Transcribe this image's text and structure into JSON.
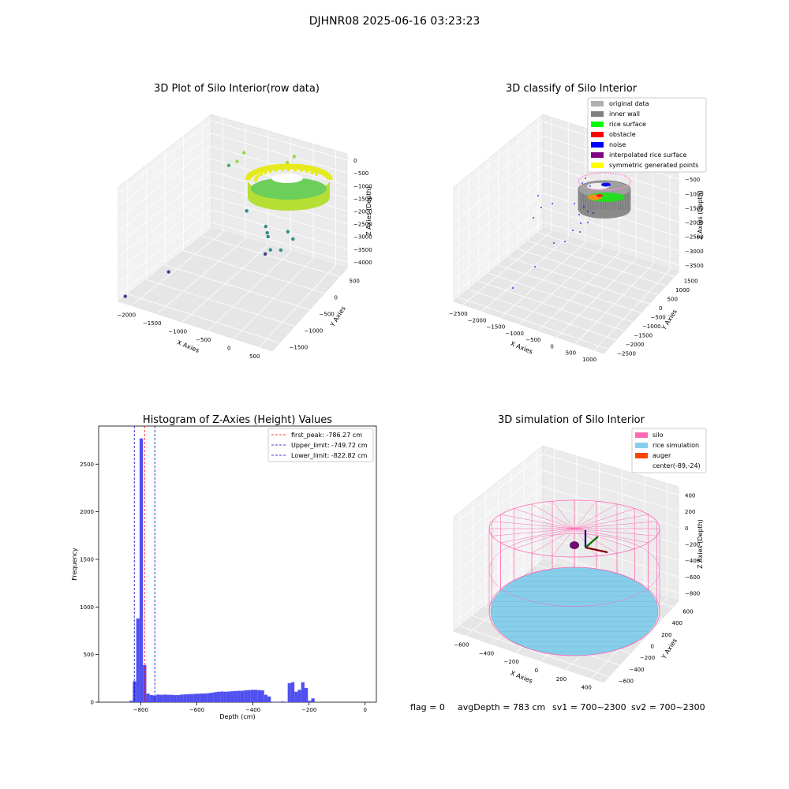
{
  "figure_title": "DJHNR08 2025-06-16 03:23:23",
  "footer": {
    "flag": "flag = 0",
    "avg_depth": "avgDepth = 783 cm",
    "sv1": "sv1 = 700~2300",
    "sv2": "sv2 = 700~2300"
  },
  "chart_data": [
    {
      "type": "scatter",
      "subtype": "3d",
      "title": "3D Plot of Silo Interior(row data)",
      "xlabel": "X Axies",
      "ylabel": "Y Axies",
      "zlabel": "Z Axies (Depth)",
      "x_ticks": [
        "-2000",
        "-1500",
        "-1000",
        "-500",
        "0",
        "500"
      ],
      "y_ticks": [
        "-1500",
        "-1000",
        "-500",
        "0",
        "500"
      ],
      "z_ticks": [
        "0",
        "-500",
        "-1000",
        "-1500",
        "-2000",
        "-2500",
        "-3000",
        "-3500",
        "-4000"
      ],
      "ring": {
        "center": [
          -89,
          -24
        ],
        "radius": 600,
        "z_top": -700,
        "z_bottom": -850
      },
      "outliers": [
        {
          "x": -2050,
          "y": -1500,
          "z": -3900
        },
        {
          "x": -1700,
          "y": -900,
          "z": -3500
        },
        {
          "x": -1600,
          "y": 500,
          "z": -1300
        },
        {
          "x": -1400,
          "y": 450,
          "z": -1000
        },
        {
          "x": -1300,
          "y": 500,
          "z": -700
        },
        {
          "x": -1100,
          "y": 300,
          "z": -2400
        },
        {
          "x": -800,
          "y": 400,
          "z": -2900
        },
        {
          "x": -700,
          "y": 300,
          "z": -2950
        },
        {
          "x": -650,
          "y": 250,
          "z": -3000
        },
        {
          "x": -500,
          "y": 100,
          "z": -3200
        },
        {
          "x": -600,
          "y": 100,
          "z": -3400
        },
        {
          "x": -300,
          "y": 300,
          "z": -2700
        },
        {
          "x": -200,
          "y": 300,
          "z": -2900
        },
        {
          "x": -300,
          "y": 100,
          "z": -3100
        },
        {
          "x": -400,
          "y": 200,
          "z": -1200
        },
        {
          "x": -250,
          "y": 400,
          "z": -1100
        },
        {
          "x": -450,
          "y": 500,
          "z": -600
        },
        {
          "x": -350,
          "y": 550,
          "z": -400
        }
      ]
    },
    {
      "type": "scatter",
      "subtype": "3d",
      "title": "3D classify of Silo Interior",
      "xlabel": "X Axies",
      "ylabel": "Y Axies",
      "zlabel": "Z Axies (Depth)",
      "x_ticks": [
        "-2500",
        "-2000",
        "-1500",
        "-1000",
        "-500",
        "0",
        "500",
        "1000"
      ],
      "y_ticks": [
        "-2500",
        "-2000",
        "-1500",
        "-1000",
        "-500",
        "0",
        "500",
        "1000",
        "1500"
      ],
      "z_ticks": [
        "0",
        "-500",
        "-1000",
        "-1500",
        "-2000",
        "-2500",
        "-3000",
        "-3500"
      ],
      "legend": [
        {
          "label": "original data",
          "color": "#b0b0b0"
        },
        {
          "label": "inner wall",
          "color": "#808080"
        },
        {
          "label": "rice surface",
          "color": "#00ff00"
        },
        {
          "label": "obstacle",
          "color": "#ff0000"
        },
        {
          "label": "noise",
          "color": "#0000ff"
        },
        {
          "label": "interpolated rice surface",
          "color": "#800080"
        },
        {
          "label": "symmetric generated points",
          "color": "#ffff00"
        }
      ],
      "legend_position": "top-right"
    },
    {
      "type": "bar",
      "subtype": "histogram",
      "title": "Histogram of Z-Axies (Height) Values",
      "xlabel": "Depth (cm)",
      "ylabel": "Frequency",
      "xlim": [
        -950,
        40
      ],
      "ylim": [
        0,
        2900
      ],
      "x_ticks": [
        -800,
        -600,
        -400,
        -200,
        0
      ],
      "y_ticks": [
        0,
        500,
        1000,
        1500,
        2000,
        2500
      ],
      "bin_width": 12,
      "bins_left": [
        -840,
        -828,
        -816,
        -804,
        -792,
        -780,
        -768,
        -756,
        -744,
        -732,
        -720,
        -708,
        -696,
        -684,
        -672,
        -660,
        -648,
        -636,
        -624,
        -612,
        -600,
        -588,
        -576,
        -564,
        -552,
        -540,
        -528,
        -516,
        -504,
        -492,
        -480,
        -468,
        -456,
        -444,
        -432,
        -420,
        -408,
        -396,
        -384,
        -372,
        -360,
        -348,
        -336,
        -324,
        -312,
        -300,
        -288,
        -276,
        -264,
        -252,
        -240,
        -228,
        -216,
        -204,
        -192,
        -180,
        -168,
        -156,
        -144,
        -132,
        -120,
        -108,
        -96,
        -84,
        -72,
        -60,
        -48,
        -36,
        -24,
        -12,
        0
      ],
      "counts": [
        15,
        220,
        880,
        2770,
        390,
        90,
        75,
        70,
        80,
        78,
        80,
        78,
        78,
        75,
        75,
        80,
        82,
        85,
        85,
        88,
        90,
        92,
        92,
        95,
        100,
        105,
        110,
        112,
        110,
        112,
        115,
        118,
        120,
        120,
        125,
        128,
        130,
        130,
        128,
        125,
        78,
        60,
        5,
        0,
        5,
        8,
        5,
        200,
        210,
        110,
        130,
        210,
        150,
        15,
        40,
        0,
        0,
        0,
        0,
        0,
        0,
        0,
        0,
        0,
        0,
        0,
        0,
        0,
        0,
        0,
        0
      ],
      "vlines": [
        {
          "label": "first_peak: -786.27 cm",
          "x": -786.27,
          "color": "#ff0000"
        },
        {
          "label": "Upper_limit: -749.72 cm",
          "x": -749.72,
          "color": "#0000cc"
        },
        {
          "label": "Lower_limit: -822.82 cm",
          "x": -822.82,
          "color": "#0000cc"
        }
      ],
      "bar_color": "#5050f0",
      "legend_position": "top-right"
    },
    {
      "type": "scatter",
      "subtype": "3d",
      "title": "3D simulation of Silo Interior",
      "xlabel": "X Axies",
      "ylabel": "Y Axies",
      "zlabel": "Z Axies (Depth)",
      "x_ticks": [
        "-600",
        "-400",
        "-200",
        "0",
        "200",
        "400"
      ],
      "y_ticks": [
        "-600",
        "-400",
        "-200",
        "0",
        "200",
        "400",
        "600"
      ],
      "z_ticks": [
        "400",
        "200",
        "0",
        "-200",
        "-400",
        "-600",
        "-800"
      ],
      "silo": {
        "center": [
          -89,
          -24
        ],
        "radius": 600,
        "z_top": 200,
        "z_bottom": -800
      },
      "rice_surface_depth": -783,
      "legend": [
        {
          "label": "silo",
          "color": "#ff69b4"
        },
        {
          "label": "rice simulation",
          "color": "#87ceeb"
        },
        {
          "label": "auger",
          "color": "#ff4500"
        },
        {
          "label": "center(-89,-24)",
          "color": ""
        }
      ],
      "legend_position": "top-right"
    }
  ]
}
